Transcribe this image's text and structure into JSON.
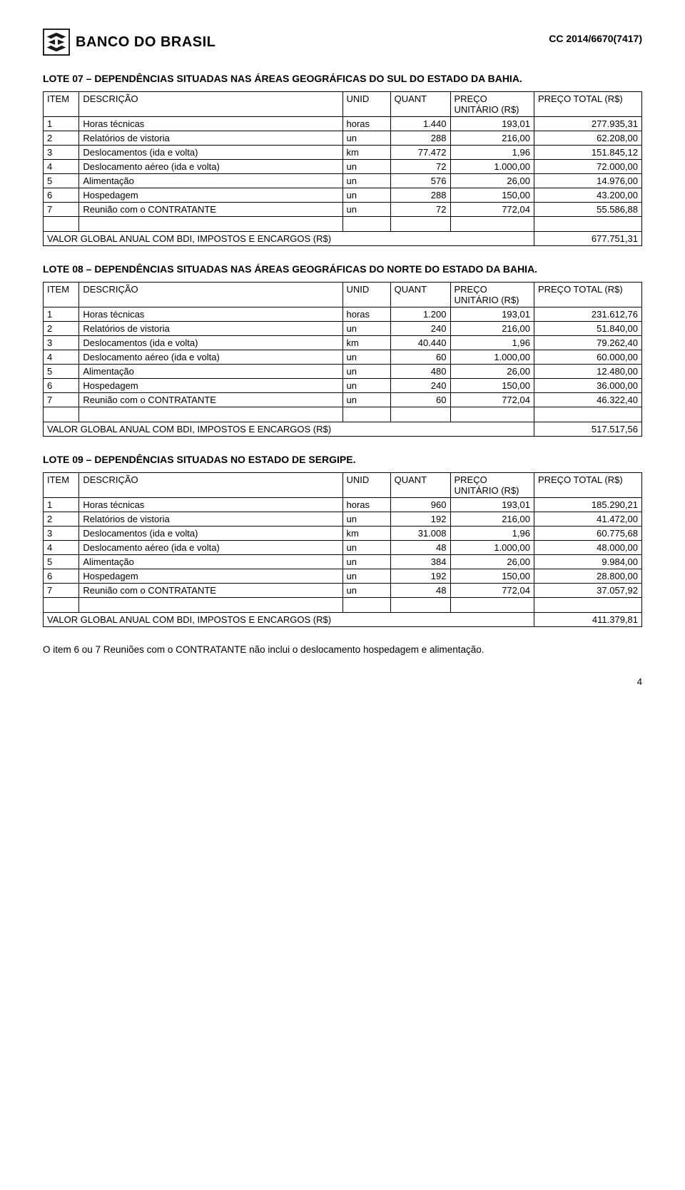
{
  "header": {
    "bank_name": "BANCO DO BRASIL",
    "cc_code": "CC 2014/6670(7417)"
  },
  "lotes": [
    {
      "title": "LOTE 07 – DEPENDÊNCIAS SITUADAS NAS ÁREAS GEOGRÁFICAS DO SUL DO ESTADO DA BAHIA.",
      "columns": [
        "ITEM",
        "DESCRIÇÃO",
        "UNID",
        "QUANT",
        "PREÇO UNITÁRIO (R$)",
        "PREÇO TOTAL (R$)"
      ],
      "rows": [
        {
          "item": "1",
          "desc": "Horas técnicas",
          "unid": "horas",
          "quant": "1.440",
          "pu": "193,01",
          "pt": "277.935,31"
        },
        {
          "item": "2",
          "desc": "Relatórios de vistoria",
          "unid": "un",
          "quant": "288",
          "pu": "216,00",
          "pt": "62.208,00"
        },
        {
          "item": "3",
          "desc": "Deslocamentos (ida e volta)",
          "unid": "km",
          "quant": "77.472",
          "pu": "1,96",
          "pt": "151.845,12"
        },
        {
          "item": "4",
          "desc": "Deslocamento aéreo (ida e volta)",
          "unid": "un",
          "quant": "72",
          "pu": "1.000,00",
          "pt": "72.000,00"
        },
        {
          "item": "5",
          "desc": "Alimentação",
          "unid": "un",
          "quant": "576",
          "pu": "26,00",
          "pt": "14.976,00"
        },
        {
          "item": "6",
          "desc": "Hospedagem",
          "unid": "un",
          "quant": "288",
          "pu": "150,00",
          "pt": "43.200,00"
        },
        {
          "item": "7",
          "desc": "Reunião com o CONTRATANTE",
          "unid": "un",
          "quant": "72",
          "pu": "772,04",
          "pt": "55.586,88"
        }
      ],
      "total_label": "VALOR GLOBAL ANUAL COM BDI, IMPOSTOS E ENCARGOS (R$)",
      "total_value": "677.751,31"
    },
    {
      "title": "LOTE 08 – DEPENDÊNCIAS SITUADAS NAS ÁREAS GEOGRÁFICAS DO NORTE DO ESTADO DA BAHIA.",
      "columns": [
        "ITEM",
        "DESCRIÇÃO",
        "UNID",
        "QUANT",
        "PREÇO UNITÁRIO (R$)",
        "PREÇO TOTAL (R$)"
      ],
      "rows": [
        {
          "item": "1",
          "desc": "Horas técnicas",
          "unid": "horas",
          "quant": "1.200",
          "pu": "193,01",
          "pt": "231.612,76"
        },
        {
          "item": "2",
          "desc": "Relatórios de vistoria",
          "unid": "un",
          "quant": "240",
          "pu": "216,00",
          "pt": "51.840,00"
        },
        {
          "item": "3",
          "desc": "Deslocamentos (ida e volta)",
          "unid": "km",
          "quant": "40.440",
          "pu": "1,96",
          "pt": "79.262,40"
        },
        {
          "item": "4",
          "desc": "Deslocamento aéreo (ida e volta)",
          "unid": "un",
          "quant": "60",
          "pu": "1.000,00",
          "pt": "60.000,00"
        },
        {
          "item": "5",
          "desc": "Alimentação",
          "unid": "un",
          "quant": "480",
          "pu": "26,00",
          "pt": "12.480,00"
        },
        {
          "item": "6",
          "desc": "Hospedagem",
          "unid": "un",
          "quant": "240",
          "pu": "150,00",
          "pt": "36.000,00"
        },
        {
          "item": "7",
          "desc": "Reunião com o CONTRATANTE",
          "unid": "un",
          "quant": "60",
          "pu": "772,04",
          "pt": "46.322,40"
        }
      ],
      "total_label": "VALOR GLOBAL ANUAL COM BDI, IMPOSTOS E ENCARGOS (R$)",
      "total_value": "517.517,56"
    },
    {
      "title": "LOTE 09 – DEPENDÊNCIAS SITUADAS NO ESTADO DE SERGIPE.",
      "columns": [
        "ITEM",
        "DESCRIÇÃO",
        "UNID",
        "QUANT",
        "PREÇO UNITÁRIO (R$)",
        "PREÇO TOTAL (R$)"
      ],
      "rows": [
        {
          "item": "1",
          "desc": "Horas técnicas",
          "unid": "horas",
          "quant": "960",
          "pu": "193,01",
          "pt": "185.290,21"
        },
        {
          "item": "2",
          "desc": "Relatórios de vistoria",
          "unid": "un",
          "quant": "192",
          "pu": "216,00",
          "pt": "41.472,00"
        },
        {
          "item": "3",
          "desc": "Deslocamentos (ida e volta)",
          "unid": "km",
          "quant": "31.008",
          "pu": "1,96",
          "pt": "60.775,68"
        },
        {
          "item": "4",
          "desc": "Deslocamento aéreo (ida e volta)",
          "unid": "un",
          "quant": "48",
          "pu": "1.000,00",
          "pt": "48.000,00"
        },
        {
          "item": "5",
          "desc": "Alimentação",
          "unid": "un",
          "quant": "384",
          "pu": "26,00",
          "pt": "9.984,00"
        },
        {
          "item": "6",
          "desc": "Hospedagem",
          "unid": "un",
          "quant": "192",
          "pu": "150,00",
          "pt": "28.800,00"
        },
        {
          "item": "7",
          "desc": "Reunião com o CONTRATANTE",
          "unid": "un",
          "quant": "48",
          "pu": "772,04",
          "pt": "37.057,92"
        }
      ],
      "total_label": "VALOR GLOBAL ANUAL COM BDI, IMPOSTOS E ENCARGOS (R$)",
      "total_value": "411.379,81"
    }
  ],
  "footer_note": "O item 6 ou 7 Reuniões com o CONTRATANTE não inclui o deslocamento hospedagem e alimentação.",
  "page_number": "4",
  "style": {
    "font_family": "Arial",
    "body_fontsize": 13,
    "title_fontsize": 14,
    "border_color": "#000000",
    "text_color": "#000000",
    "background_color": "#ffffff",
    "logo_color": "#1a1a1a"
  }
}
